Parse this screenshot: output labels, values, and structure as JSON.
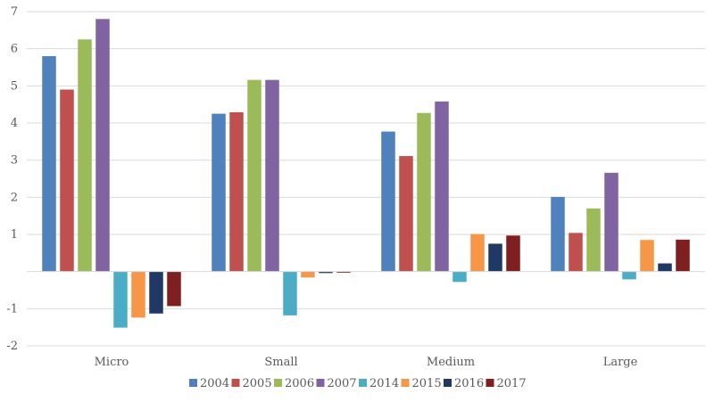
{
  "chart_data": {
    "type": "bar",
    "title": "",
    "xlabel": "",
    "ylabel": "",
    "ylim": [
      -2,
      7
    ],
    "yticks": [
      -2,
      -1,
      0,
      1,
      2,
      3,
      4,
      5,
      6,
      7
    ],
    "ytick_labels": [
      "-2",
      "-1",
      "",
      "1",
      "2",
      "3",
      "4",
      "5",
      "6",
      "7"
    ],
    "grid": true,
    "legend_position": "bottom",
    "categories": [
      "Micro",
      "Small",
      "Medium",
      "Large"
    ],
    "series": [
      {
        "name": "2004",
        "color": "#4F81BD",
        "values": [
          5.8,
          4.25,
          3.77,
          2.01
        ]
      },
      {
        "name": "2005",
        "color": "#C0504D",
        "values": [
          4.9,
          4.29,
          3.11,
          1.04
        ]
      },
      {
        "name": "2006",
        "color": "#9BBB59",
        "values": [
          6.25,
          5.16,
          4.27,
          1.7
        ]
      },
      {
        "name": "2007",
        "color": "#8064A2",
        "values": [
          6.8,
          5.16,
          4.58,
          2.66
        ]
      },
      {
        "name": "2014",
        "color": "#4BACC6",
        "values": [
          -1.51,
          -1.18,
          -0.28,
          -0.21
        ]
      },
      {
        "name": "2015",
        "color": "#F79646",
        "values": [
          -1.24,
          -0.16,
          1.01,
          0.85
        ]
      },
      {
        "name": "2016",
        "color": "#1F3864",
        "values": [
          -1.13,
          -0.04,
          0.75,
          0.22
        ]
      },
      {
        "name": "2017",
        "color": "#7F1F1F",
        "values": [
          -0.93,
          -0.03,
          0.97,
          0.86
        ]
      }
    ]
  }
}
